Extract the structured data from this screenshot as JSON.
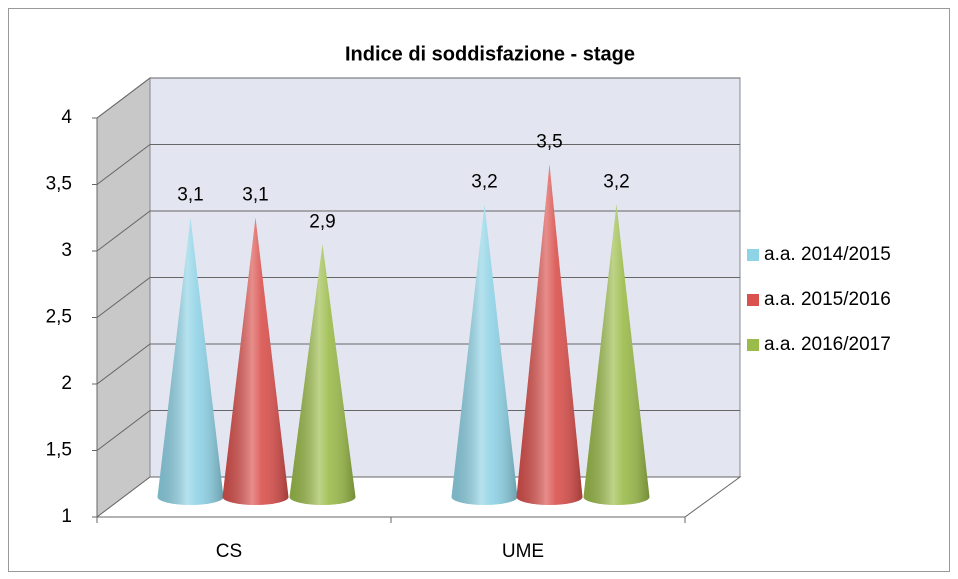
{
  "chart_data": {
    "type": "cone3d",
    "title": "Indice di soddisfazione - stage",
    "categories": [
      "CS",
      "UME"
    ],
    "series": [
      {
        "name": "a.a. 2014/2015",
        "color": "#8fd3e6",
        "values": [
          3.1,
          3.2
        ],
        "value_labels": [
          "3,1",
          "3,2"
        ]
      },
      {
        "name": "a.a. 2015/2016",
        "color": "#d9504c",
        "values": [
          3.1,
          3.5
        ],
        "value_labels": [
          "3,1",
          "3,5"
        ]
      },
      {
        "name": "a.a. 2016/2017",
        "color": "#9bbb4a",
        "values": [
          2.9,
          3.2
        ],
        "value_labels": [
          "2,9",
          "3,2"
        ]
      }
    ],
    "ylim": [
      1,
      4
    ],
    "yticks": [
      1,
      {
        "value": 1.5,
        "label": "1,5"
      },
      2,
      {
        "value": 2.5,
        "label": "2,5"
      },
      3,
      {
        "value": 3.5,
        "label": "3,5"
      },
      4
    ],
    "grid": true,
    "legend": "right"
  }
}
